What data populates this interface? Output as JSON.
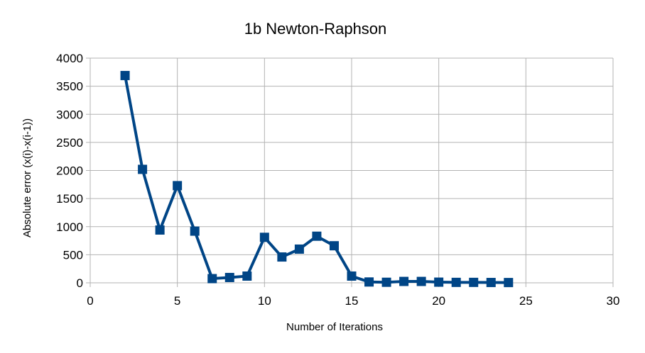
{
  "chart_data": {
    "type": "line",
    "title": "1b Newton-Raphson",
    "xlabel": "Number of Iterations",
    "ylabel": "Absolute error (x(i)-x(i-1))",
    "xlim": [
      0,
      30
    ],
    "ylim": [
      0,
      4000
    ],
    "xticks": [
      0,
      5,
      10,
      15,
      20,
      25,
      30
    ],
    "yticks": [
      0,
      500,
      1000,
      1500,
      2000,
      2500,
      3000,
      3500,
      4000
    ],
    "grid": true,
    "legend": "none",
    "series": [
      {
        "color": "#004586",
        "marker": "square",
        "x": [
          2,
          3,
          4,
          5,
          6,
          7,
          8,
          9,
          10,
          11,
          12,
          13,
          14,
          15,
          16,
          17,
          18,
          19,
          20,
          21,
          22,
          23,
          24
        ],
        "y": [
          3690,
          2020,
          940,
          1730,
          920,
          75,
          95,
          120,
          810,
          460,
          600,
          830,
          660,
          120,
          15,
          10,
          25,
          25,
          12,
          8,
          8,
          6,
          5
        ]
      }
    ]
  }
}
